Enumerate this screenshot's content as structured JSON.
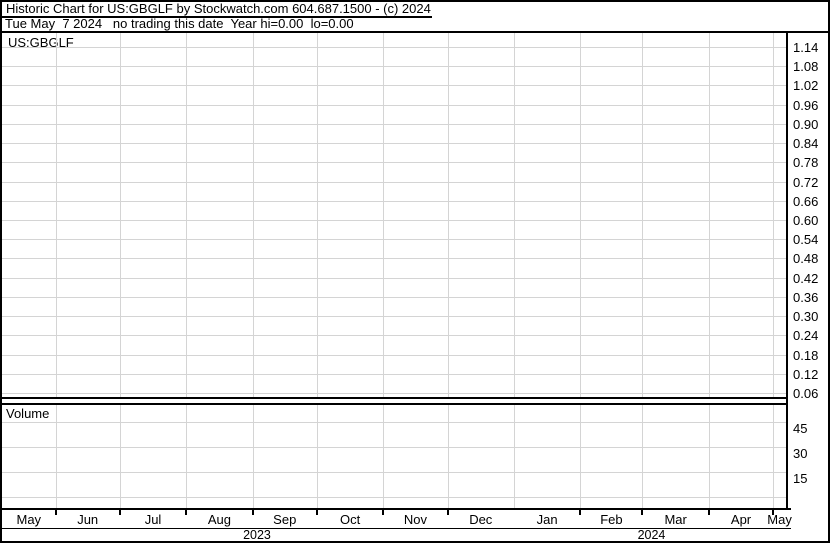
{
  "header": {
    "title": "Historic Chart for US:GBGLF by Stockwatch.com 604.687.1500 - (c) 2024",
    "subtitle": "Tue May  7 2024   no trading this date  Year hi=0.00  lo=0.00"
  },
  "panels": {
    "symbol_label": "US:GBGLF",
    "volume_label": "Volume"
  },
  "chart_data": {
    "type": "line",
    "title": "Historic Chart for US:GBGLF",
    "subtitle_status": "no trading this date",
    "year_hi": "0.00",
    "year_lo": "0.00",
    "series": [],
    "price_axis": {
      "side": "right",
      "ticks": [
        "1.14",
        "1.08",
        "1.02",
        "0.96",
        "0.90",
        "0.84",
        "0.78",
        "0.72",
        "0.66",
        "0.60",
        "0.54",
        "0.48",
        "0.42",
        "0.36",
        "0.30",
        "0.24",
        "0.18",
        "0.12",
        "0.06"
      ],
      "min": 0.06,
      "max": 1.14,
      "step": 0.06
    },
    "volume_axis": {
      "label": "Volume",
      "ticks": [
        "45",
        "30",
        "15"
      ]
    },
    "x_axis": {
      "months": [
        "May",
        "Jun",
        "Jul",
        "Aug",
        "Sep",
        "Oct",
        "Nov",
        "Dec",
        "Jan",
        "Feb",
        "Mar",
        "Apr",
        "May"
      ],
      "years": [
        "2023",
        "2024"
      ],
      "range_start": "May 2023",
      "range_end": "May 2024"
    },
    "grid": true,
    "legend": "none",
    "colors": {
      "background": "#ffffff",
      "grid": "#d4d4d4",
      "border": "#000000",
      "text": "#000000"
    }
  }
}
